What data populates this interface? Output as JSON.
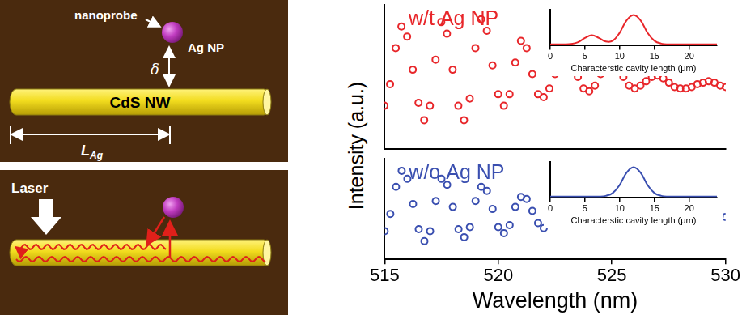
{
  "diagram": {
    "top_panel": {
      "probe_label": "nanoprobe",
      "particle_label": "Ag NP",
      "gap_label": "δ",
      "wire_label": "CdS NW",
      "length_label": {
        "text": "L",
        "subscript": "Ag"
      }
    },
    "bottom_panel": {
      "laser_label": "Laser"
    }
  },
  "shared_y_label": "Intensity (a.u.)",
  "chart_data": [
    {
      "type": "scatter",
      "title": "w/t Ag NP",
      "color": "#e8262a",
      "marker": "circle",
      "grid": false,
      "tick_labels": false,
      "xlim": [
        515,
        530
      ],
      "ylim": [
        0,
        1
      ],
      "x": [
        515,
        515.25,
        515.5,
        515.75,
        516,
        516.25,
        516.5,
        516.75,
        517,
        517.25,
        517.5,
        517.75,
        518,
        518.25,
        518.5,
        518.75,
        519,
        519.25,
        519.5,
        519.75,
        520,
        520.25,
        520.5,
        520.75,
        521,
        521.25,
        521.5,
        521.75,
        522,
        522.25,
        522.5,
        522.75,
        523,
        523.25,
        523.5,
        523.75,
        524,
        524.25,
        524.5,
        524.75,
        525,
        525.25,
        525.5,
        525.75,
        526,
        526.25,
        526.5,
        526.75,
        527,
        527.25,
        527.5,
        527.75,
        528,
        528.25,
        528.5,
        528.75,
        529,
        529.25,
        529.5,
        529.75,
        530
      ],
      "values": [
        0.3,
        0.45,
        0.7,
        0.85,
        0.78,
        0.55,
        0.32,
        0.2,
        0.3,
        0.62,
        0.88,
        0.8,
        0.55,
        0.3,
        0.2,
        0.35,
        0.7,
        0.9,
        0.82,
        0.58,
        0.38,
        0.3,
        0.38,
        0.6,
        0.75,
        0.7,
        0.52,
        0.38,
        0.36,
        0.42,
        0.52,
        0.62,
        0.65,
        0.6,
        0.5,
        0.42,
        0.4,
        0.44,
        0.52,
        0.58,
        0.6,
        0.57,
        0.5,
        0.44,
        0.42,
        0.44,
        0.47,
        0.5,
        0.51,
        0.49,
        0.46,
        0.43,
        0.42,
        0.42,
        0.43,
        0.45,
        0.46,
        0.47,
        0.46,
        0.44,
        0.43
      ]
    },
    {
      "type": "line",
      "color": "#e8262a",
      "line_style": "solid",
      "grid": false,
      "tick_labels": "x",
      "x_label": "Characterstic cavity length (μm)",
      "xlim": [
        0,
        24
      ],
      "xticks": [
        0,
        5,
        10,
        15,
        20
      ],
      "ylim": [
        0,
        1
      ],
      "x": [
        0,
        1,
        2,
        3,
        4,
        5,
        6,
        7,
        8,
        9,
        10,
        11,
        12,
        13,
        14,
        15,
        16,
        17,
        18,
        19,
        20,
        21,
        22,
        23,
        24
      ],
      "values": [
        0.02,
        0.02,
        0.02,
        0.03,
        0.08,
        0.2,
        0.28,
        0.2,
        0.1,
        0.12,
        0.35,
        0.7,
        0.85,
        0.7,
        0.35,
        0.12,
        0.04,
        0.02,
        0.02,
        0.02,
        0.02,
        0.02,
        0.02,
        0.02,
        0.02
      ]
    },
    {
      "type": "scatter",
      "title": "w/o Ag NP",
      "color": "#3a4fb0",
      "marker": "circle",
      "grid": false,
      "tick_labels": "x",
      "x_label": "Wavelength (nm)",
      "xlim": [
        515,
        530
      ],
      "xticks": [
        515,
        520,
        525,
        530
      ],
      "ylim": [
        0,
        1
      ],
      "x": [
        515,
        515.25,
        515.5,
        515.75,
        516,
        516.25,
        516.5,
        516.75,
        517,
        517.25,
        517.5,
        517.75,
        518,
        518.25,
        518.5,
        518.75,
        519,
        519.25,
        519.5,
        519.75,
        520,
        520.25,
        520.5,
        520.75,
        521,
        521.25,
        521.5,
        521.75,
        522,
        522.25,
        522.5,
        522.75,
        523,
        523.25,
        523.5,
        523.75,
        524,
        524.25,
        524.5,
        524.75,
        525,
        525.25,
        525.5,
        525.75,
        526,
        526.25,
        526.5,
        526.75,
        527,
        527.25,
        527.5,
        527.75,
        528,
        528.25,
        528.5,
        528.75,
        529,
        529.25,
        529.5,
        529.75,
        530
      ],
      "values": [
        0.28,
        0.45,
        0.72,
        0.88,
        0.8,
        0.55,
        0.3,
        0.18,
        0.28,
        0.58,
        0.8,
        0.74,
        0.52,
        0.3,
        0.22,
        0.32,
        0.58,
        0.72,
        0.68,
        0.5,
        0.32,
        0.26,
        0.34,
        0.52,
        0.62,
        0.6,
        0.48,
        0.36,
        0.31,
        0.36,
        0.46,
        0.54,
        0.55,
        0.51,
        0.44,
        0.38,
        0.36,
        0.39,
        0.45,
        0.49,
        0.5,
        0.48,
        0.44,
        0.4,
        0.38,
        0.4,
        0.43,
        0.46,
        0.47,
        0.46,
        0.44,
        0.42,
        0.4,
        0.41,
        0.42,
        0.44,
        0.45,
        0.45,
        0.44,
        0.43,
        0.42
      ]
    },
    {
      "type": "line",
      "color": "#3a4fb0",
      "line_style": "solid",
      "grid": false,
      "tick_labels": "x",
      "x_label": "Characterstic cavity length (μm)",
      "xlim": [
        0,
        24
      ],
      "xticks": [
        0,
        5,
        10,
        15,
        20
      ],
      "ylim": [
        0,
        1
      ],
      "x": [
        0,
        1,
        2,
        3,
        4,
        5,
        6,
        7,
        8,
        9,
        10,
        11,
        12,
        13,
        14,
        15,
        16,
        17,
        18,
        19,
        20,
        21,
        22,
        23,
        24
      ],
      "values": [
        0.02,
        0.02,
        0.02,
        0.02,
        0.02,
        0.02,
        0.02,
        0.02,
        0.04,
        0.12,
        0.35,
        0.7,
        0.85,
        0.7,
        0.35,
        0.12,
        0.04,
        0.02,
        0.02,
        0.02,
        0.02,
        0.02,
        0.02,
        0.02,
        0.02
      ]
    }
  ]
}
